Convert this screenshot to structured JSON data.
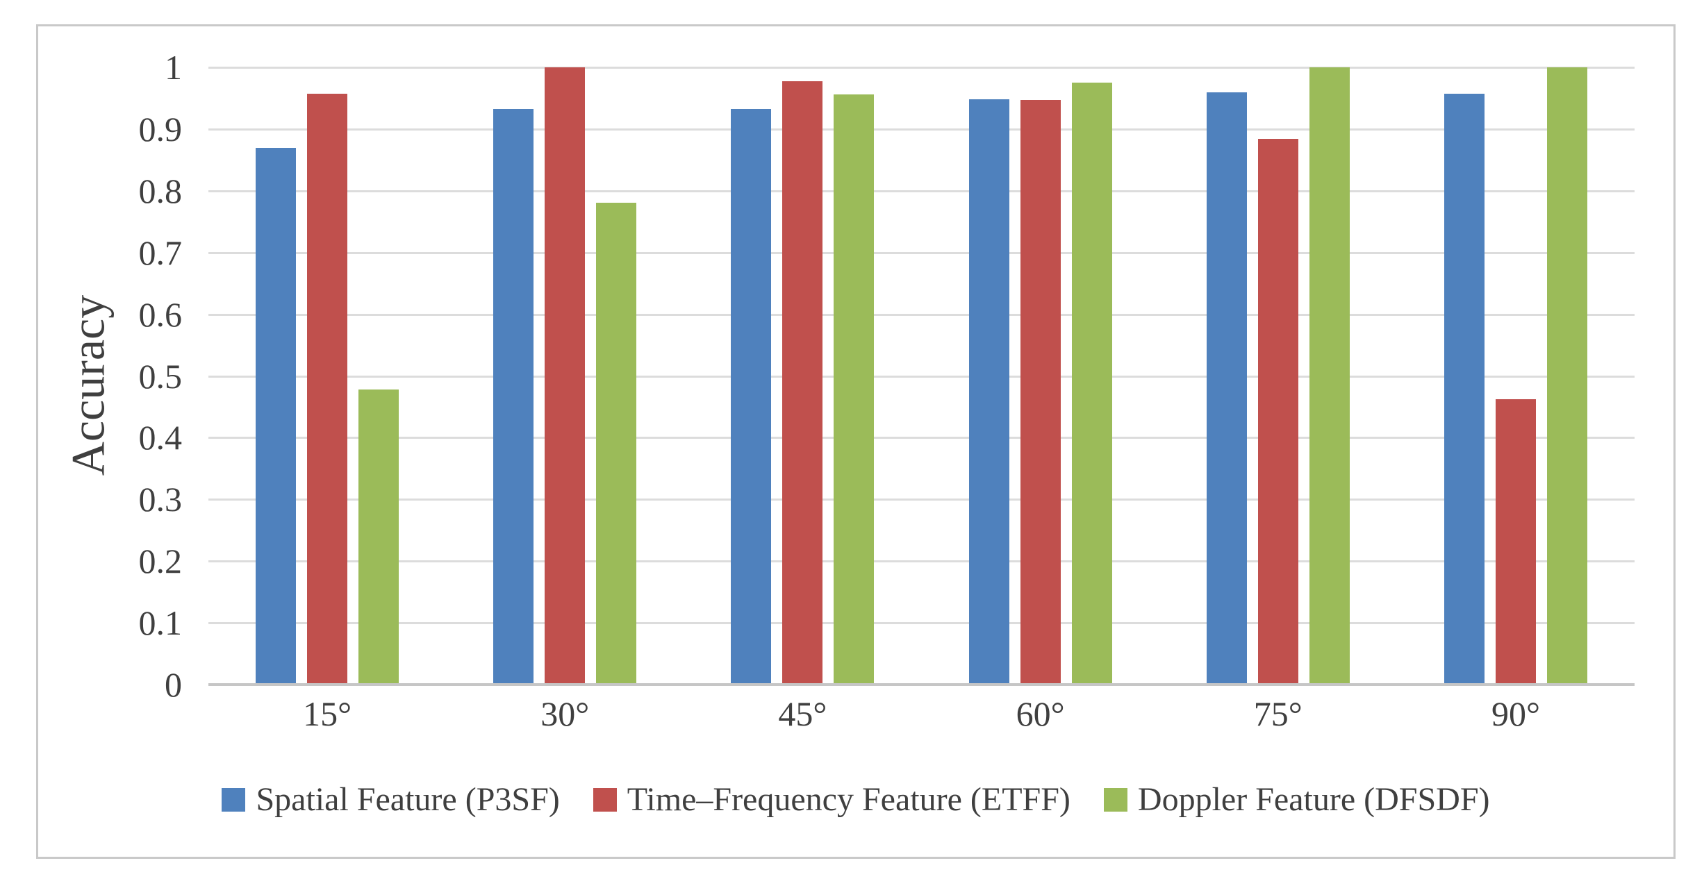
{
  "chart_data": {
    "type": "bar",
    "title": "",
    "xlabel": "",
    "ylabel": "Accuracy",
    "ylim": [
      0,
      1
    ],
    "ytick_step": 0.1,
    "yticks_bottom_up": [
      "0",
      "0.1",
      "0.2",
      "0.3",
      "0.4",
      "0.5",
      "0.6",
      "0.7",
      "0.8",
      "0.9",
      "1"
    ],
    "grid": "horizontal",
    "grid_color": "#dcdcdc",
    "axis_line_color": "#c6c6c6",
    "legend_position": "bottom",
    "categories": [
      "15°",
      "30°",
      "45°",
      "60°",
      "75°",
      "90°"
    ],
    "series": [
      {
        "name": "Spatial Feature (P3SF)",
        "color": "#4f81bd",
        "values": [
          0.87,
          0.933,
          0.933,
          0.948,
          0.959,
          0.957
        ]
      },
      {
        "name": "Time–Frequency Feature (ETFF)",
        "color": "#c0504d",
        "values": [
          0.957,
          1.0,
          0.977,
          0.947,
          0.884,
          0.462
        ]
      },
      {
        "name": "Doppler Feature (DFSDF)",
        "color": "#9bbb59",
        "values": [
          0.478,
          0.781,
          0.956,
          0.975,
          1.0,
          1.0
        ]
      }
    ]
  }
}
